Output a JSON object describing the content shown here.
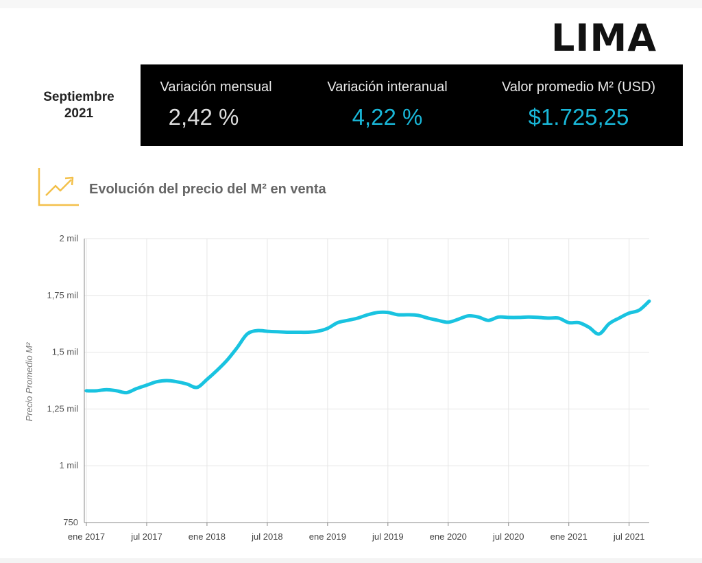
{
  "header": {
    "city": "LIMA",
    "date_line1": "Septiembre",
    "date_line2": "2021"
  },
  "stats": [
    {
      "label": "Variación mensual",
      "value": "2,42 %",
      "color": "#dddddd"
    },
    {
      "label": "Variación interanual",
      "value": "4,22 %",
      "color": "#19b7d8"
    },
    {
      "label": "Valor promedio M² (USD)",
      "value": "$1.725,25",
      "color": "#19b7d8"
    }
  ],
  "chart_section": {
    "icon": "trending-up-icon",
    "title": "Evolución del precio del M² en venta"
  },
  "chart_data": {
    "type": "line",
    "ylabel": "Precio Promedio M²",
    "xlabel": "",
    "ylim": [
      750,
      2000
    ],
    "yticks": [
      {
        "value": 750,
        "label": "750"
      },
      {
        "value": 1000,
        "label": "1 mil"
      },
      {
        "value": 1250,
        "label": "1,25 mil"
      },
      {
        "value": 1500,
        "label": "1,5 mil"
      },
      {
        "value": 1750,
        "label": "1,75 mil"
      },
      {
        "value": 2000,
        "label": "2 mil"
      }
    ],
    "xticks": [
      {
        "date": "2017-01",
        "label": "ene 2017"
      },
      {
        "date": "2017-07",
        "label": "jul 2017"
      },
      {
        "date": "2018-01",
        "label": "ene 2018"
      },
      {
        "date": "2018-07",
        "label": "jul 2018"
      },
      {
        "date": "2019-01",
        "label": "ene 2019"
      },
      {
        "date": "2019-07",
        "label": "jul 2019"
      },
      {
        "date": "2020-01",
        "label": "ene 2020"
      },
      {
        "date": "2020-07",
        "label": "jul 2020"
      },
      {
        "date": "2021-01",
        "label": "ene 2021"
      },
      {
        "date": "2021-07",
        "label": "jul 2021"
      }
    ],
    "grid": true,
    "line_color": "#19c3e0",
    "series": [
      {
        "x": [
          "2017-01",
          "2017-02",
          "2017-03",
          "2017-04",
          "2017-05",
          "2017-06",
          "2017-07",
          "2017-08",
          "2017-09",
          "2017-10",
          "2017-11",
          "2017-12",
          "2018-01",
          "2018-02",
          "2018-03",
          "2018-04",
          "2018-05",
          "2018-06",
          "2018-07",
          "2018-08",
          "2018-09",
          "2018-10",
          "2018-11",
          "2018-12",
          "2019-01",
          "2019-02",
          "2019-03",
          "2019-04",
          "2019-05",
          "2019-06",
          "2019-07",
          "2019-08",
          "2019-09",
          "2019-10",
          "2019-11",
          "2019-12",
          "2020-01",
          "2020-02",
          "2020-03",
          "2020-04",
          "2020-05",
          "2020-06",
          "2020-07",
          "2020-08",
          "2020-09",
          "2020-10",
          "2020-11",
          "2020-12",
          "2021-01",
          "2021-02",
          "2021-03",
          "2021-04",
          "2021-05",
          "2021-06",
          "2021-07",
          "2021-08",
          "2021-09"
        ],
        "y": [
          1330,
          1330,
          1335,
          1330,
          1322,
          1340,
          1355,
          1370,
          1375,
          1370,
          1360,
          1345,
          1380,
          1420,
          1465,
          1520,
          1580,
          1595,
          1592,
          1590,
          1588,
          1588,
          1588,
          1592,
          1605,
          1630,
          1640,
          1650,
          1665,
          1675,
          1675,
          1665,
          1665,
          1662,
          1650,
          1640,
          1632,
          1645,
          1660,
          1655,
          1640,
          1655,
          1653,
          1653,
          1655,
          1653,
          1650,
          1650,
          1630,
          1630,
          1610,
          1580,
          1625,
          1650,
          1672,
          1685,
          1725
        ]
      }
    ]
  }
}
